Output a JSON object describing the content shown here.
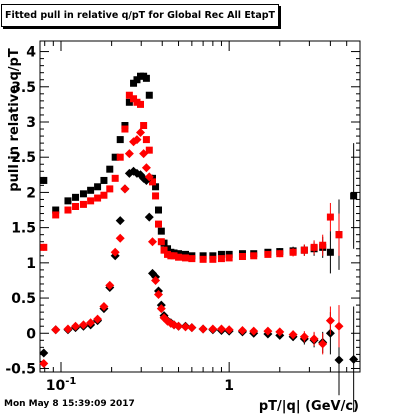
{
  "title": "Fitted pull in relative q/pT for Global Rec All EtapT",
  "footer_timestamp": "Mon May  8 15:39:09 2017",
  "chart_data": {
    "type": "scatter",
    "title": "Fitted pull in relative q/pT for Global Rec All EtapT",
    "xlabel": "pT/|q| (GeV/c)",
    "ylabel": "pull in relative q/pT",
    "x_scale": "log",
    "xlim": [
      0.075,
      6.0
    ],
    "ylim": [
      -0.55,
      4.15
    ],
    "x_tick_labels": [
      {
        "value": 0.1,
        "label": "10",
        "exp": "-1"
      },
      {
        "value": 1,
        "label": "1",
        "exp": ""
      }
    ],
    "y_ticks": [
      -0.5,
      0,
      0.5,
      1,
      1.5,
      2,
      2.5,
      3,
      3.5,
      4
    ],
    "y_tick_labels": [
      "-0.5",
      "0",
      "0.5",
      "1",
      "1.5",
      "2",
      "2.5",
      "3",
      "3.5",
      "4"
    ],
    "legend": "none",
    "colors": {
      "black_series": "#000000",
      "red_series": "#ff0000"
    },
    "series": [
      {
        "marker": "square",
        "color": "#000000",
        "x": [
          0.079,
          0.093,
          0.11,
          0.122,
          0.136,
          0.15,
          0.165,
          0.18,
          0.195,
          0.21,
          0.225,
          0.24,
          0.255,
          0.27,
          0.283,
          0.297,
          0.31,
          0.322,
          0.335,
          0.35,
          0.365,
          0.38,
          0.395,
          0.41,
          0.43,
          0.45,
          0.47,
          0.5,
          0.55,
          0.6,
          0.7,
          0.8,
          0.9,
          1.0,
          1.2,
          1.4,
          1.7,
          2.0,
          2.4,
          2.8,
          3.2,
          3.6,
          4.0,
          4.5,
          5.5
        ],
        "y": [
          2.17,
          1.75,
          1.88,
          1.93,
          1.98,
          2.03,
          2.08,
          2.17,
          2.33,
          2.5,
          2.75,
          2.95,
          3.28,
          3.55,
          3.6,
          3.65,
          3.65,
          3.62,
          3.38,
          2.2,
          2.08,
          1.75,
          1.45,
          1.28,
          1.2,
          1.15,
          1.14,
          1.13,
          1.12,
          1.1,
          1.1,
          1.1,
          1.12,
          1.12,
          1.13,
          1.13,
          1.15,
          1.16,
          1.17,
          1.18,
          1.2,
          1.22,
          1.15,
          1.4,
          1.95
        ],
        "y_err": [
          0.05,
          0.03,
          0.02,
          0.02,
          0.02,
          0.02,
          0.02,
          0.02,
          0.02,
          0.03,
          0.03,
          0.03,
          0.03,
          0.03,
          0.03,
          0.03,
          0.03,
          0.03,
          0.04,
          0.05,
          0.04,
          0.04,
          0.03,
          0.02,
          0.02,
          0.02,
          0.02,
          0.02,
          0.02,
          0.02,
          0.02,
          0.02,
          0.02,
          0.03,
          0.03,
          0.03,
          0.04,
          0.05,
          0.06,
          0.08,
          0.1,
          0.15,
          0.3,
          0.5,
          0.75
        ]
      },
      {
        "marker": "square",
        "color": "#ff0000",
        "x": [
          0.079,
          0.093,
          0.11,
          0.122,
          0.136,
          0.15,
          0.165,
          0.18,
          0.195,
          0.21,
          0.225,
          0.24,
          0.255,
          0.27,
          0.283,
          0.297,
          0.31,
          0.322,
          0.335,
          0.35,
          0.365,
          0.38,
          0.395,
          0.41,
          0.43,
          0.45,
          0.47,
          0.5,
          0.55,
          0.6,
          0.7,
          0.8,
          0.9,
          1.0,
          1.2,
          1.4,
          1.7,
          2.0,
          2.4,
          2.8,
          3.2,
          3.6,
          4.0,
          4.5
        ],
        "y": [
          1.22,
          1.68,
          1.75,
          1.8,
          1.83,
          1.88,
          1.92,
          1.96,
          2.05,
          2.2,
          2.5,
          2.9,
          3.38,
          3.33,
          3.28,
          3.25,
          2.95,
          2.75,
          2.6,
          2.15,
          1.95,
          1.55,
          1.3,
          1.18,
          1.12,
          1.1,
          1.1,
          1.08,
          1.07,
          1.06,
          1.05,
          1.05,
          1.06,
          1.07,
          1.09,
          1.1,
          1.12,
          1.13,
          1.15,
          1.18,
          1.22,
          1.25,
          1.65,
          1.4
        ],
        "y_err": [
          0.05,
          0.03,
          0.02,
          0.02,
          0.02,
          0.02,
          0.02,
          0.02,
          0.02,
          0.03,
          0.03,
          0.03,
          0.03,
          0.03,
          0.03,
          0.03,
          0.03,
          0.03,
          0.04,
          0.05,
          0.04,
          0.04,
          0.03,
          0.02,
          0.02,
          0.02,
          0.02,
          0.02,
          0.02,
          0.02,
          0.02,
          0.02,
          0.02,
          0.03,
          0.03,
          0.03,
          0.04,
          0.05,
          0.06,
          0.08,
          0.1,
          0.15,
          0.2,
          0.3
        ]
      },
      {
        "marker": "diamond",
        "color": "#000000",
        "x": [
          0.079,
          0.093,
          0.11,
          0.122,
          0.136,
          0.15,
          0.165,
          0.18,
          0.195,
          0.21,
          0.225,
          0.24,
          0.255,
          0.27,
          0.283,
          0.297,
          0.31,
          0.322,
          0.335,
          0.35,
          0.365,
          0.38,
          0.395,
          0.41,
          0.43,
          0.45,
          0.47,
          0.5,
          0.55,
          0.6,
          0.7,
          0.8,
          0.9,
          1.0,
          1.2,
          1.4,
          1.7,
          2.0,
          2.4,
          2.8,
          3.2,
          3.6,
          4.0,
          4.5,
          5.5
        ],
        "y": [
          -0.28,
          0.05,
          0.05,
          0.08,
          0.1,
          0.12,
          0.18,
          0.35,
          0.65,
          1.1,
          1.6,
          2.05,
          2.27,
          2.3,
          2.27,
          2.25,
          2.2,
          2.17,
          1.65,
          0.85,
          0.8,
          0.6,
          0.4,
          0.25,
          0.18,
          0.15,
          0.12,
          0.1,
          0.1,
          0.08,
          0.06,
          0.05,
          0.04,
          0.03,
          0.02,
          0.0,
          -0.01,
          -0.03,
          -0.05,
          -0.08,
          -0.1,
          -0.13,
          0.0,
          -0.38,
          -0.37
        ],
        "y_err": [
          0.05,
          0.03,
          0.02,
          0.02,
          0.02,
          0.02,
          0.02,
          0.02,
          0.02,
          0.03,
          0.03,
          0.03,
          0.03,
          0.03,
          0.03,
          0.03,
          0.03,
          0.03,
          0.04,
          0.05,
          0.04,
          0.04,
          0.03,
          0.02,
          0.02,
          0.02,
          0.02,
          0.02,
          0.02,
          0.02,
          0.02,
          0.02,
          0.02,
          0.03,
          0.03,
          0.03,
          0.04,
          0.05,
          0.06,
          0.08,
          0.1,
          0.15,
          0.3,
          0.5,
          0.75
        ]
      },
      {
        "marker": "diamond",
        "color": "#ff0000",
        "x": [
          0.079,
          0.093,
          0.11,
          0.122,
          0.136,
          0.15,
          0.165,
          0.18,
          0.195,
          0.21,
          0.225,
          0.24,
          0.255,
          0.27,
          0.283,
          0.297,
          0.31,
          0.322,
          0.335,
          0.35,
          0.365,
          0.38,
          0.395,
          0.41,
          0.43,
          0.45,
          0.47,
          0.5,
          0.55,
          0.6,
          0.7,
          0.8,
          0.9,
          1.0,
          1.2,
          1.4,
          1.7,
          2.0,
          2.4,
          2.8,
          3.2,
          3.6,
          4.0,
          4.5
        ],
        "y": [
          -0.43,
          0.05,
          0.06,
          0.1,
          0.12,
          0.15,
          0.2,
          0.38,
          0.68,
          1.15,
          1.35,
          2.05,
          2.55,
          2.72,
          2.75,
          2.85,
          2.55,
          2.35,
          2.22,
          1.3,
          0.75,
          0.55,
          0.35,
          0.22,
          0.17,
          0.14,
          0.12,
          0.1,
          0.09,
          0.08,
          0.06,
          0.06,
          0.06,
          0.05,
          0.04,
          0.03,
          0.03,
          0.02,
          -0.02,
          -0.05,
          -0.08,
          -0.15,
          0.18,
          0.1
        ],
        "y_err": [
          0.05,
          0.03,
          0.02,
          0.02,
          0.02,
          0.02,
          0.02,
          0.02,
          0.02,
          0.03,
          0.03,
          0.03,
          0.03,
          0.03,
          0.03,
          0.03,
          0.03,
          0.03,
          0.04,
          0.05,
          0.04,
          0.04,
          0.03,
          0.02,
          0.02,
          0.02,
          0.02,
          0.02,
          0.02,
          0.02,
          0.02,
          0.02,
          0.02,
          0.03,
          0.03,
          0.03,
          0.04,
          0.05,
          0.06,
          0.08,
          0.1,
          0.15,
          0.2,
          0.3
        ]
      }
    ]
  }
}
